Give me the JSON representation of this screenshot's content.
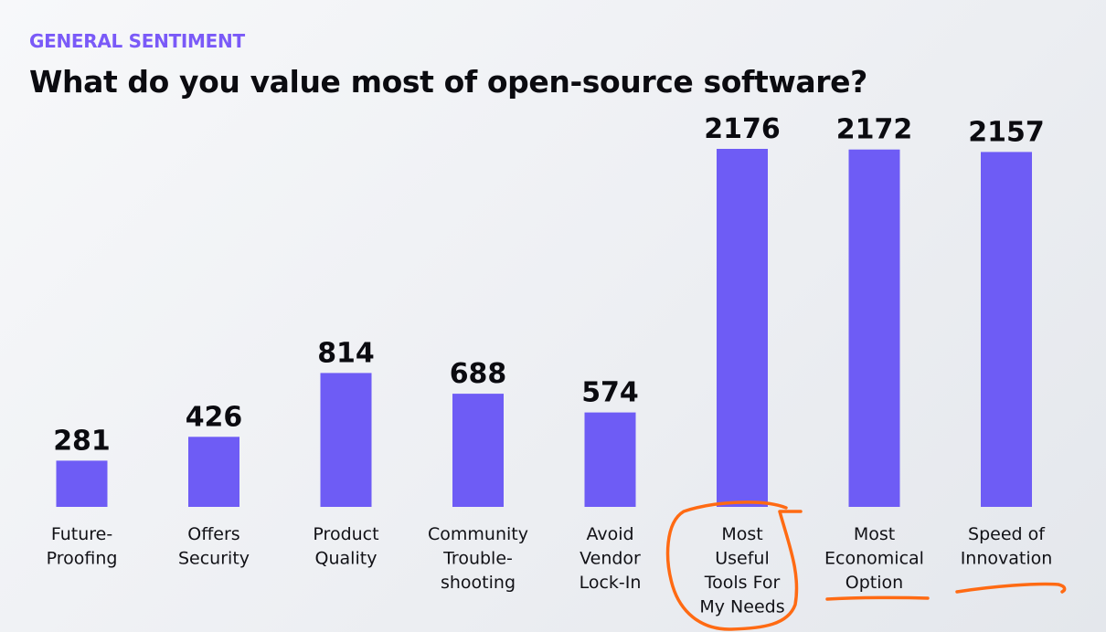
{
  "header": {
    "kicker": "GENERAL SENTIMENT",
    "title": "What do you value most of open-source software?"
  },
  "colors": {
    "bar": "#6e5cf5",
    "kicker": "#7a5af8",
    "annotation": "#ff6a13"
  },
  "chart_data": {
    "type": "bar",
    "title": "What do you value most of open-source software?",
    "subtitle": "GENERAL SENTIMENT",
    "xlabel": "",
    "ylabel": "",
    "ylim": [
      0,
      2200
    ],
    "grid": false,
    "categories": [
      "Future-Proofing",
      "Offers Security",
      "Product Quality",
      "Community Trouble-shooting",
      "Avoid Vendor Lock-In",
      "Most Useful Tools For My Needs",
      "Most Economical Option",
      "Speed of Innovation"
    ],
    "category_lines": [
      [
        "Future-",
        "Proofing"
      ],
      [
        "Offers",
        "Security"
      ],
      [
        "Product",
        "Quality"
      ],
      [
        "Community",
        "Trouble-",
        "shooting"
      ],
      [
        "Avoid",
        "Vendor",
        "Lock-In"
      ],
      [
        "Most",
        "Useful",
        "Tools For",
        "My Needs"
      ],
      [
        "Most",
        "Economical",
        "Option"
      ],
      [
        "Speed of",
        "Innovation"
      ]
    ],
    "values": [
      281,
      426,
      814,
      688,
      574,
      2176,
      2172,
      2157
    ],
    "value_labels": [
      "281",
      "426",
      "814",
      "688",
      "574",
      "2176",
      "2172",
      "2157"
    ],
    "annotations": [
      {
        "type": "circle",
        "category": "Most Useful Tools For My Needs"
      },
      {
        "type": "underline",
        "category": "Most Economical Option"
      },
      {
        "type": "underline",
        "category": "Speed of Innovation"
      }
    ]
  }
}
